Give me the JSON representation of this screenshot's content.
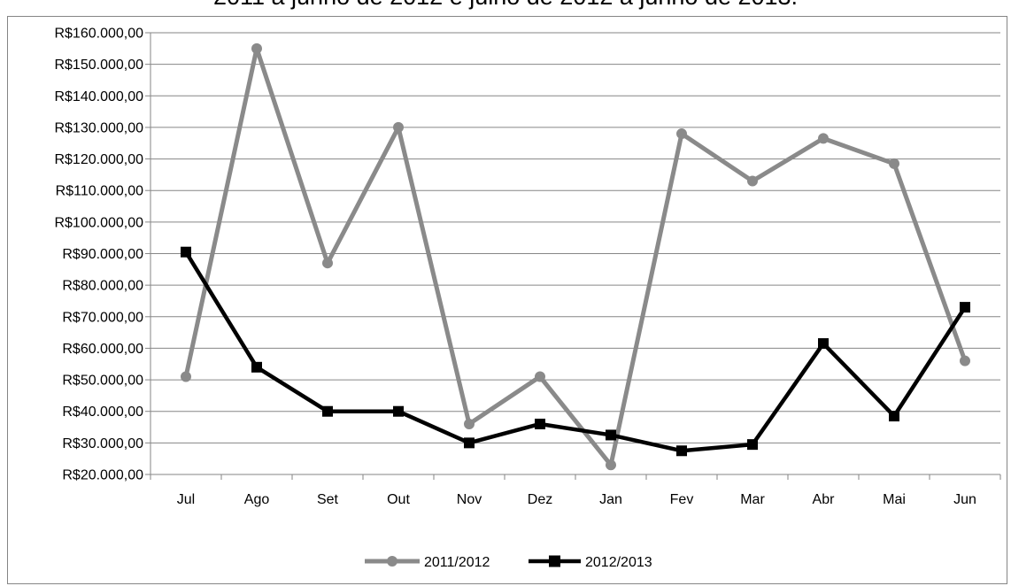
{
  "chart_data": {
    "type": "line",
    "title": "2011 a junho de 2012 e julho de 2012 a junho de 2013.",
    "xlabel": "",
    "ylabel": "",
    "categories": [
      "Jul",
      "Ago",
      "Set",
      "Out",
      "Nov",
      "Dez",
      "Jan",
      "Fev",
      "Mar",
      "Abr",
      "Mai",
      "Jun"
    ],
    "ylim": [
      20000,
      160000
    ],
    "ytick_step": 10000,
    "ytick_labels": [
      "R$20.000,00",
      "R$30.000,00",
      "R$40.000,00",
      "R$50.000,00",
      "R$60.000,00",
      "R$70.000,00",
      "R$80.000,00",
      "R$90.000,00",
      "R$100.000,00",
      "R$110.000,00",
      "R$120.000,00",
      "R$130.000,00",
      "R$140.000,00",
      "R$150.000,00",
      "R$160.000,00"
    ],
    "grid": true,
    "legend_position": "bottom",
    "series": [
      {
        "name": "2011/2012",
        "color": "#8a8a8a",
        "marker": "circle",
        "values": [
          51000,
          155000,
          87000,
          130000,
          36000,
          51000,
          23000,
          128000,
          113000,
          126500,
          118500,
          56000
        ]
      },
      {
        "name": "2012/2013",
        "color": "#000000",
        "marker": "square",
        "values": [
          90500,
          54000,
          40000,
          40000,
          30000,
          36000,
          32500,
          27500,
          29500,
          61500,
          38500,
          73000
        ]
      }
    ]
  }
}
